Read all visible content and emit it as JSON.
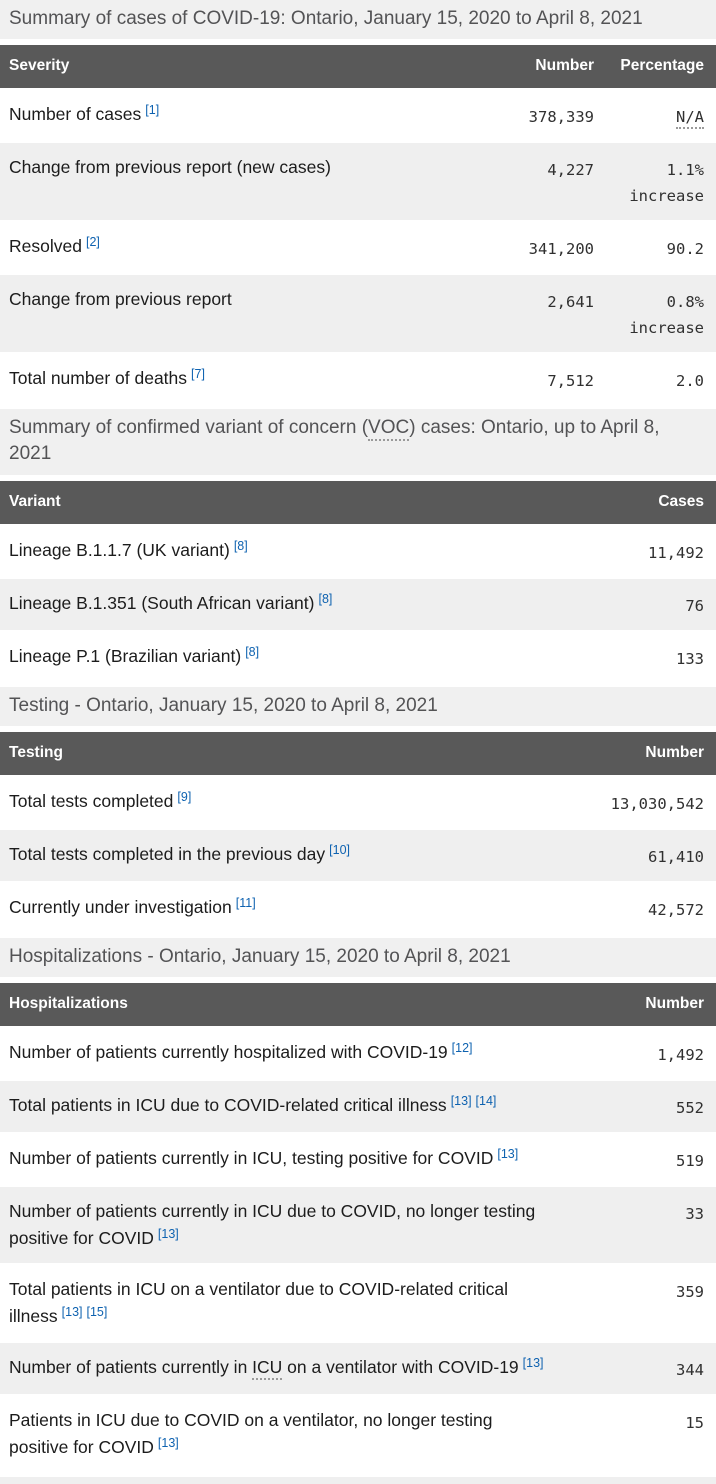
{
  "colors": {
    "table_header_bg": "#595959",
    "table_header_text": "#ffffff",
    "row_alt_bg": "#efefef",
    "section_title_bg": "#f0f0f0",
    "link_blue": "#0e62b0",
    "body_text": "#1c1c1c"
  },
  "sections": [
    {
      "title_pre": "Summary of cases of COVID-19: Ontario, January 15, 2020 to April 8, 2021",
      "columns": {
        "label": "Severity",
        "number": "Number",
        "percentage": "Percentage"
      },
      "rows": [
        {
          "label_pre": "Number of cases",
          "footnotes": [
            "[1]"
          ],
          "number": "378,339",
          "pct_abbr": "N/A"
        },
        {
          "label_pre": "Change from previous report (new cases)",
          "number": "4,227",
          "pct": "1.1% increase"
        },
        {
          "label_pre": "Resolved",
          "footnotes": [
            "[2]"
          ],
          "number": "341,200",
          "pct": "90.2"
        },
        {
          "label_pre": "Change from previous report",
          "number": "2,641",
          "pct": "0.8% increase"
        },
        {
          "label_pre": "Total number of deaths",
          "footnotes": [
            "[7]"
          ],
          "number": "7,512",
          "pct": "2.0"
        }
      ]
    },
    {
      "title_pre": "Summary of confirmed variant of concern (",
      "title_abbr": "VOC",
      "title_post": ") cases: Ontario, up to April 8, 2021",
      "columns": {
        "label": "Variant",
        "number": "Cases"
      },
      "rows": [
        {
          "label_pre": "Lineage B.1.1.7 (UK variant)",
          "footnotes": [
            "[8]"
          ],
          "number": "11,492"
        },
        {
          "label_pre": "Lineage B.1.351 (South African variant)",
          "footnotes": [
            "[8]"
          ],
          "number": "76"
        },
        {
          "label_pre": "Lineage P.1 (Brazilian variant)",
          "footnotes": [
            "[8]"
          ],
          "number": "133"
        }
      ]
    },
    {
      "title_pre": "Testing - Ontario, January 15, 2020 to April 8, 2021",
      "columns": {
        "label": "Testing",
        "number": "Number"
      },
      "rows": [
        {
          "label_pre": "Total tests completed",
          "footnotes": [
            "[9]"
          ],
          "number": "13,030,542"
        },
        {
          "label_pre": "Total tests completed in the previous day",
          "footnotes": [
            "[10]"
          ],
          "number": "61,410"
        },
        {
          "label_pre": "Currently under investigation",
          "footnotes": [
            "[11]"
          ],
          "number": "42,572"
        }
      ]
    },
    {
      "title_pre": "Hospitalizations - Ontario, January 15, 2020 to April 8, 2021",
      "columns": {
        "label": "Hospitalizations",
        "number": "Number"
      },
      "rows": [
        {
          "label_pre": "Number of patients currently hospitalized with COVID-19",
          "footnotes": [
            "[12]"
          ],
          "number": "1,492"
        },
        {
          "label_pre": "Total patients in ICU due to COVID-related critical illness",
          "footnotes": [
            "[13]",
            "[14]"
          ],
          "number": "552"
        },
        {
          "label_pre": "Number of patients currently in ICU, testing positive for COVID",
          "footnotes": [
            "[13]"
          ],
          "number": "519"
        },
        {
          "label_pre": "Number of patients currently in ICU due to COVID, no longer testing positive for COVID",
          "footnotes": [
            "[13]"
          ],
          "number": "33"
        },
        {
          "label_pre": "Total patients in ICU on a ventilator due to COVID-related critical illness",
          "footnotes": [
            "[13]",
            "[15]"
          ],
          "number": "359"
        },
        {
          "label_pre": "Number of patients currently in ",
          "label_abbr": "ICU",
          "label_post": " on a ventilator with COVID-19",
          "footnotes": [
            "[13]"
          ],
          "number": "344"
        },
        {
          "label_pre": "Patients in ICU due to COVID on a ventilator, no longer testing positive for COVID",
          "footnotes": [
            "[13]"
          ],
          "number": "15"
        }
      ]
    }
  ]
}
